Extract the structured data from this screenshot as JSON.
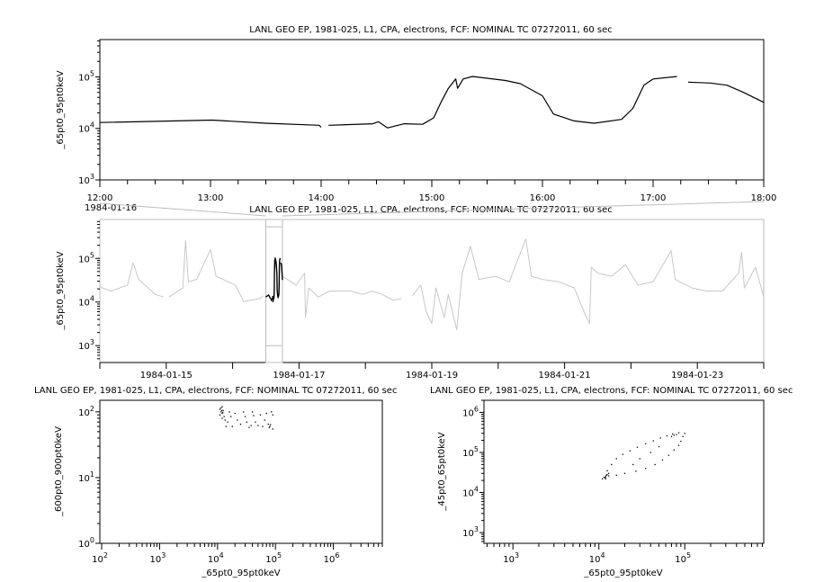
{
  "colors": {
    "axis": "#000000",
    "context": "#c8c8c8",
    "focus": "#000000",
    "highlight_box": "#bdbdbd"
  },
  "chart_data": [
    {
      "type": "line",
      "title": "LANL GEO EP, 1981-025, L1, CPA, electrons, FCF: NOMINAL TC 07272011, 60 sec",
      "xlabel": "",
      "ylabel": "_65pt0_95pt0keV",
      "yscale": "log",
      "ylim": [
        1000,
        530000
      ],
      "x_range": [
        "1984-01-16T12:00",
        "1984-01-16T18:00"
      ],
      "x_tick_labels": [
        "12:00",
        "13:00",
        "14:00",
        "15:00",
        "16:00",
        "17:00",
        "18:00"
      ],
      "date_label": "1984-01-16",
      "grid": false,
      "series": [
        {
          "color": "#000000",
          "segments": [
            [
              [
                "1984-01-16T12:00",
                13000
              ],
              [
                "1984-01-16T13:01",
                14500
              ],
              [
                "1984-01-16T13:30",
                12600
              ],
              [
                "1984-01-16T13:59",
                11500
              ],
              [
                "1984-01-16T14:00",
                10500
              ]
            ],
            [
              [
                "1984-01-16T14:04",
                11500
              ],
              [
                "1984-01-16T14:28",
                12300
              ],
              [
                "1984-01-16T14:31",
                13500
              ],
              [
                "1984-01-16T14:36",
                10200
              ],
              [
                "1984-01-16T14:45",
                12300
              ],
              [
                "1984-01-16T14:55",
                12000
              ],
              [
                "1984-01-16T15:01",
                16000
              ],
              [
                "1984-01-16T15:05",
                32000
              ],
              [
                "1984-01-16T15:09",
                60000
              ],
              [
                "1984-01-16T15:13",
                91000
              ],
              [
                "1984-01-16T15:14",
                60000
              ],
              [
                "1984-01-16T15:17",
                91000
              ],
              [
                "1984-01-16T15:22",
                102000
              ],
              [
                "1984-01-16T15:40",
                85000
              ],
              [
                "1984-01-16T15:48",
                74000
              ],
              [
                "1984-01-16T16:00",
                43000
              ],
              [
                "1984-01-16T16:06",
                19000
              ],
              [
                "1984-01-16T16:17",
                14000
              ],
              [
                "1984-01-16T16:28",
                12600
              ],
              [
                "1984-01-16T16:43",
                15000
              ],
              [
                "1984-01-16T16:49",
                24500
              ],
              [
                "1984-01-16T16:55",
                69000
              ],
              [
                "1984-01-16T17:00",
                91000
              ],
              [
                "1984-01-16T17:13",
                102000
              ]
            ],
            [
              [
                "1984-01-16T17:19",
                79000
              ],
              [
                "1984-01-16T17:31",
                76000
              ],
              [
                "1984-01-16T17:40",
                69000
              ],
              [
                "1984-01-16T17:49",
                50000
              ],
              [
                "1984-01-16T18:00",
                32000
              ]
            ]
          ]
        }
      ]
    },
    {
      "type": "line",
      "title": "LANL GEO EP, 1981-025, L1, CPA, electrons, FCF: NOMINAL TC 07272011, 60 sec",
      "xlabel": "",
      "ylabel": "_65pt0_95pt0keV",
      "yscale": "log",
      "ylim": [
        410,
        780000
      ],
      "x_range": [
        "1984-01-14T00:00",
        "1984-01-24T00:00"
      ],
      "x_tick_labels": [
        "1984-01-15",
        "1984-01-17",
        "1984-01-19",
        "1984-01-21",
        "1984-01-23"
      ],
      "grid": false,
      "highlight": {
        "range": [
          "1984-01-16T12:00",
          "1984-01-16T18:00"
        ],
        "color": "#000000"
      },
      "series": [
        {
          "color": "#c8c8c8",
          "segments": [
            [
              [
                "1984-01-14T00:00",
                22400
              ],
              [
                "1984-01-14T04:00",
                17800
              ],
              [
                "1984-01-14T10:00",
                24500
              ],
              [
                "1984-01-14T12:00",
                79000
              ],
              [
                "1984-01-14T14:00",
                33000
              ],
              [
                "1984-01-14T20:00",
                15000
              ],
              [
                "1984-01-14T23:00",
                13000
              ]
            ],
            [
              [
                "1984-01-15T01:00",
                13000
              ],
              [
                "1984-01-15T06:00",
                21000
              ],
              [
                "1984-01-15T07:00",
                260000
              ],
              [
                "1984-01-15T08:00",
                29000
              ],
              [
                "1984-01-15T11:00",
                33000
              ],
              [
                "1984-01-15T16:00",
                160000
              ],
              [
                "1984-01-15T18:00",
                39000
              ],
              [
                "1984-01-16T01:00",
                24500
              ],
              [
                "1984-01-16T04:00",
                10200
              ],
              [
                "1984-01-16T10:00",
                12000
              ],
              [
                "1984-01-16T11:00",
                14000
              ]
            ],
            [
              [
                "1984-01-16T18:00",
                39000
              ],
              [
                "1984-01-16T23:00",
                24500
              ],
              [
                "1984-01-17T02:00",
                46000
              ],
              [
                "1984-01-17T02:20",
                4400
              ],
              [
                "1984-01-17T03:30",
                21000
              ],
              [
                "1984-01-17T07:00",
                13000
              ],
              [
                "1984-01-17T11:00",
                17800
              ],
              [
                "1984-01-17T19:00",
                17800
              ],
              [
                "1984-01-17T23:00",
                15000
              ],
              [
                "1984-01-18T02:30",
                17800
              ],
              [
                "1984-01-18T06:00",
                15000
              ],
              [
                "1984-01-18T10:00",
                11000
              ],
              [
                "1984-01-18T13:00",
                12000
              ]
            ],
            [
              [
                "1984-01-18T17:00",
                14000
              ],
              [
                "1984-01-18T20:00",
                24500
              ],
              [
                "1984-01-18T22:00",
                6000
              ],
              [
                "1984-01-19T00:00",
                3200
              ],
              [
                "1984-01-19T01:30",
                21000
              ],
              [
                "1984-01-19T04:30",
                4400
              ],
              [
                "1984-01-19T06:00",
                15000
              ],
              [
                "1984-01-19T09:00",
                2300
              ],
              [
                "1984-01-19T11:00",
                46000
              ],
              [
                "1984-01-19T14:00",
                190000
              ],
              [
                "1984-01-19T17:00",
                33000
              ],
              [
                "1984-01-19T23:00",
                39000
              ],
              [
                "1984-01-20T04:00",
                29000
              ],
              [
                "1984-01-20T10:00",
                280000
              ],
              [
                "1984-01-20T12:00",
                39000
              ],
              [
                "1984-01-20T16:00",
                33000
              ],
              [
                "1984-01-20T22:00",
                29000
              ],
              [
                "1984-01-21T03:30",
                21000
              ],
              [
                "1984-01-21T07:00",
                6000
              ],
              [
                "1984-01-21T09:00",
                3200
              ],
              [
                "1984-01-21T09:40",
                63000
              ],
              [
                "1984-01-21T12:00",
                46000
              ],
              [
                "1984-01-21T17:00",
                39000
              ],
              [
                "1984-01-21T22:00",
                72000
              ],
              [
                "1984-01-22T02:30",
                24500
              ],
              [
                "1984-01-22T08:00",
                29000
              ],
              [
                "1984-01-22T14:30",
                150000
              ],
              [
                "1984-01-22T16:00",
                33000
              ],
              [
                "1984-01-22T22:00",
                21000
              ],
              [
                "1984-01-23T03:30",
                17800
              ],
              [
                "1984-01-23T09:00",
                17800
              ],
              [
                "1984-01-23T15:00",
                46000
              ],
              [
                "1984-01-23T16:00",
                140000
              ],
              [
                "1984-01-23T17:00",
                21000
              ],
              [
                "1984-01-23T21:00",
                63000
              ],
              [
                "1984-01-24T00:00",
                13000
              ]
            ]
          ]
        }
      ]
    },
    {
      "type": "scatter",
      "title": "LANL GEO EP, 1981-025, L1, CPA, electrons, FCF: NOMINAL TC 07272011, 60 sec",
      "xlabel": "_65pt0_95pt0keV",
      "ylabel": "_600pt0_900pt0keV",
      "xscale": "log",
      "yscale": "log",
      "xlim": [
        93,
        7000000
      ],
      "ylim": [
        1,
        150
      ],
      "grid": false,
      "points": [
        [
          11000,
          110
        ],
        [
          11500,
          100
        ],
        [
          12000,
          95
        ],
        [
          12500,
          105
        ],
        [
          12000,
          120
        ],
        [
          11000,
          90
        ],
        [
          13000,
          85
        ],
        [
          11500,
          115
        ],
        [
          12000,
          80
        ],
        [
          13500,
          75
        ],
        [
          15000,
          70
        ],
        [
          18000,
          60
        ],
        [
          20000,
          95
        ],
        [
          25000,
          65
        ],
        [
          30000,
          85
        ],
        [
          35000,
          58
        ],
        [
          40000,
          100
        ],
        [
          45000,
          70
        ],
        [
          50000,
          62
        ],
        [
          55000,
          90
        ],
        [
          60000,
          60
        ],
        [
          70000,
          95
        ],
        [
          75000,
          65
        ],
        [
          80000,
          60
        ],
        [
          85000,
          100
        ],
        [
          90000,
          55
        ],
        [
          90000,
          90
        ],
        [
          16000,
          100
        ],
        [
          22000,
          75
        ],
        [
          28000,
          100
        ],
        [
          32000,
          70
        ],
        [
          38000,
          62
        ],
        [
          42000,
          88
        ],
        [
          65000,
          75
        ],
        [
          78000,
          58
        ],
        [
          82000,
          64
        ],
        [
          14000,
          60
        ],
        [
          17000,
          85
        ],
        [
          11800,
          105
        ],
        [
          12300,
          98
        ]
      ]
    },
    {
      "type": "scatter",
      "title": "LANL GEO EP, 1981-025, L1, CPA, electrons, FCF: NOMINAL TC 07272011, 60 sec",
      "xlabel": "_65pt0_95pt0keV",
      "ylabel": "_45pt0_65pt0keV",
      "xscale": "log",
      "yscale": "log",
      "xlim": [
        460,
        830000
      ],
      "ylim": [
        540,
        2000000
      ],
      "grid": false,
      "points": [
        [
          11000,
          22000
        ],
        [
          12000,
          25000
        ],
        [
          12500,
          28000
        ],
        [
          13000,
          30000
        ],
        [
          11500,
          24000
        ],
        [
          12000,
          22000
        ],
        [
          13000,
          26000
        ],
        [
          12200,
          27000
        ],
        [
          11800,
          23500
        ],
        [
          12500,
          35000
        ],
        [
          14000,
          50000
        ],
        [
          16000,
          70000
        ],
        [
          19000,
          90000
        ],
        [
          23000,
          110000
        ],
        [
          28000,
          135000
        ],
        [
          35000,
          165000
        ],
        [
          43000,
          195000
        ],
        [
          52000,
          230000
        ],
        [
          62000,
          260000
        ],
        [
          72000,
          290000
        ],
        [
          85000,
          310000
        ],
        [
          100000,
          300000
        ],
        [
          95000,
          250000
        ],
        [
          90000,
          190000
        ],
        [
          85000,
          150000
        ],
        [
          75000,
          115000
        ],
        [
          65000,
          85000
        ],
        [
          55000,
          65000
        ],
        [
          45000,
          50000
        ],
        [
          35000,
          40000
        ],
        [
          27000,
          34000
        ],
        [
          20000,
          30000
        ],
        [
          16000,
          27000
        ],
        [
          30000,
          70000
        ],
        [
          40000,
          100000
        ],
        [
          50000,
          140000
        ],
        [
          25000,
          50000
        ],
        [
          70000,
          250000
        ],
        [
          75000,
          270000
        ],
        [
          80000,
          280000
        ]
      ]
    }
  ]
}
